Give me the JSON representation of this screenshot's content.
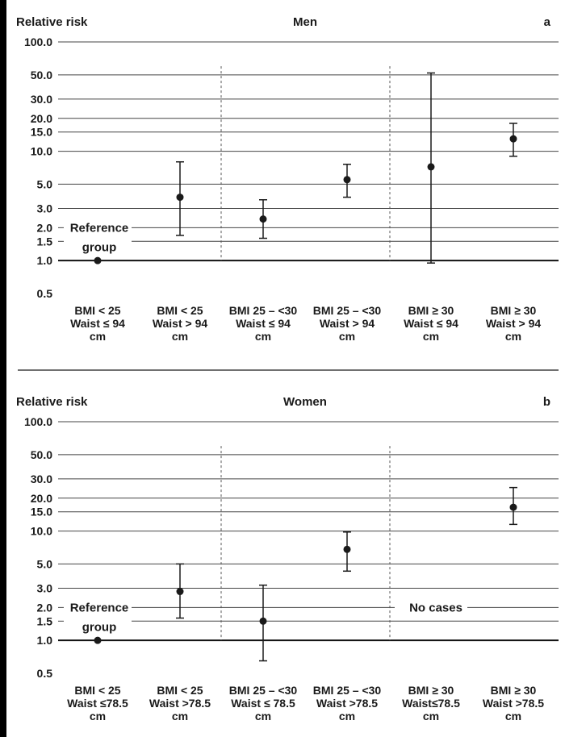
{
  "colors": {
    "ink": "#1a1a1a",
    "grid": "#444444",
    "background": "#ffffff",
    "frame": "#000000"
  },
  "chart_data": [
    {
      "type": "scatter",
      "panel_label": "a",
      "title": "Men",
      "ylabel": "Relative risk",
      "yscale": "log",
      "ylim": [
        0.5,
        100
      ],
      "yticks": [
        0.5,
        1,
        1.5,
        2,
        3,
        5,
        10,
        15,
        20,
        30,
        50,
        100
      ],
      "ytick_labels": [
        "0.5",
        "1.0",
        "1.5",
        "2.0",
        "3.0",
        "5.0",
        "10.0",
        "15.0",
        "20.0",
        "30.0",
        "50.0",
        "100.0"
      ],
      "grid": true,
      "categories": [
        [
          "BMI < 25",
          "Waist ≤ 94",
          "cm"
        ],
        [
          "BMI < 25",
          "Waist > 94",
          "cm"
        ],
        [
          "BMI 25 – <30",
          "Waist ≤ 94",
          "cm"
        ],
        [
          "BMI 25 – <30",
          "Waist  > 94",
          "cm"
        ],
        [
          "BMI ≥ 30",
          "Waist ≤ 94",
          "cm"
        ],
        [
          "BMI ≥ 30",
          "Waist > 94",
          "cm"
        ]
      ],
      "values": [
        1.0,
        3.8,
        2.4,
        5.5,
        7.2,
        13.0
      ],
      "ci_lower": [
        null,
        1.7,
        1.6,
        3.8,
        0.95,
        9.0
      ],
      "ci_upper": [
        null,
        8.0,
        3.6,
        7.6,
        52.0,
        18.0
      ],
      "annotations": [
        {
          "category_index": 0,
          "lines": [
            "Reference",
            "group"
          ]
        }
      ]
    },
    {
      "type": "scatter",
      "panel_label": "b",
      "title": "Women",
      "ylabel": "Relative risk",
      "yscale": "log",
      "ylim": [
        0.5,
        100
      ],
      "yticks": [
        0.5,
        1,
        1.5,
        2,
        3,
        5,
        10,
        15,
        20,
        30,
        50,
        100
      ],
      "ytick_labels": [
        "0.5",
        "1.0",
        "1.5",
        "2.0",
        "3.0",
        "5.0",
        "10.0",
        "15.0",
        "20.0",
        "30.0",
        "50.0",
        "100.0"
      ],
      "grid": true,
      "categories": [
        [
          "BMI < 25",
          "Waist ≤78.5",
          "cm"
        ],
        [
          "BMI < 25",
          "Waist >78.5",
          "cm"
        ],
        [
          "BMI 25 – <30",
          "Waist ≤ 78.5",
          "cm"
        ],
        [
          "BMI 25 – <30",
          "Waist  >78.5",
          "cm"
        ],
        [
          "BMI ≥ 30",
          "Waist≤78.5",
          "cm"
        ],
        [
          "BMI ≥ 30",
          "Waist >78.5",
          "cm"
        ]
      ],
      "values": [
        1.0,
        2.8,
        1.5,
        6.8,
        null,
        16.5
      ],
      "ci_lower": [
        null,
        1.6,
        0.65,
        4.3,
        null,
        11.5
      ],
      "ci_upper": [
        null,
        5.0,
        3.2,
        9.8,
        null,
        25.0
      ],
      "annotations": [
        {
          "category_index": 0,
          "lines": [
            "Reference",
            "group"
          ]
        },
        {
          "category_index": 4,
          "lines": [
            "No cases"
          ]
        }
      ]
    }
  ]
}
